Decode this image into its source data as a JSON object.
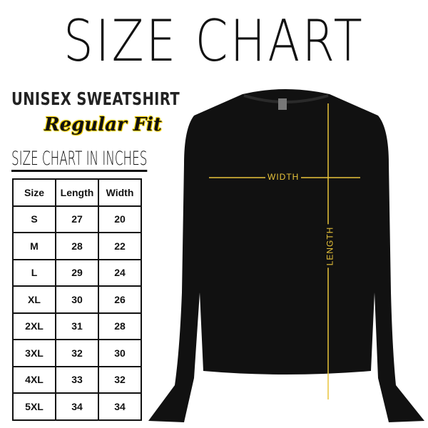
{
  "title": "SIZE CHART",
  "product": "UNISEX SWEATSHIRT",
  "fit": "Regular Fit",
  "table_title": "SIZE CHART IN INCHES",
  "table": {
    "headers": [
      "Size",
      "Length",
      "Width"
    ],
    "rows": [
      [
        "S",
        "27",
        "20"
      ],
      [
        "M",
        "28",
        "22"
      ],
      [
        "L",
        "29",
        "24"
      ],
      [
        "XL",
        "30",
        "26"
      ],
      [
        "2XL",
        "31",
        "28"
      ],
      [
        "3XL",
        "32",
        "30"
      ],
      [
        "4XL",
        "33",
        "32"
      ],
      [
        "5XL",
        "34",
        "34"
      ]
    ]
  },
  "measure_labels": {
    "width": "WIDTH",
    "length": "LENGTH"
  },
  "colors": {
    "garment": "#111111",
    "measure_line": "#e9c43a",
    "accent": "#f5d000"
  }
}
